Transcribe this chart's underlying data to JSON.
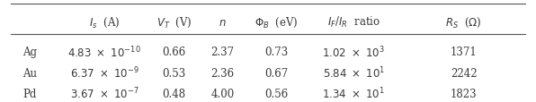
{
  "col_headers": [
    "",
    "$I_s$  (A)",
    "$V_T$  (V)",
    "$n$",
    "$\\Phi_B$  (eV)",
    "$I_F$/$I_R$  ratio",
    "$R_S$  ($\\Omega$)"
  ],
  "rows": [
    [
      "Ag",
      "$4.83\\ \\times\\ 10^{-10}$",
      "0.66",
      "2.37",
      "0.73",
      "$1.02\\ \\times\\ 10^{3}$",
      "1371"
    ],
    [
      "Au",
      "$6.37\\ \\times\\ 10^{-9}$",
      "0.53",
      "2.36",
      "0.67",
      "$5.84\\ \\times\\ 10^{1}$",
      "2242"
    ],
    [
      "Pd",
      "$3.67\\ \\times\\ 10^{-7}$",
      "0.48",
      "4.00",
      "0.56",
      "$1.34\\ \\times\\ 10^{1}$",
      "1823"
    ]
  ],
  "col_align": [
    "left",
    "center",
    "center",
    "center",
    "center",
    "center",
    "center"
  ],
  "bg_color": "#ffffff",
  "text_color": "#3a3a3a",
  "line_color": "#555555",
  "font_size": 8.5,
  "fig_width": 5.96,
  "fig_height": 1.15,
  "dpi": 100
}
